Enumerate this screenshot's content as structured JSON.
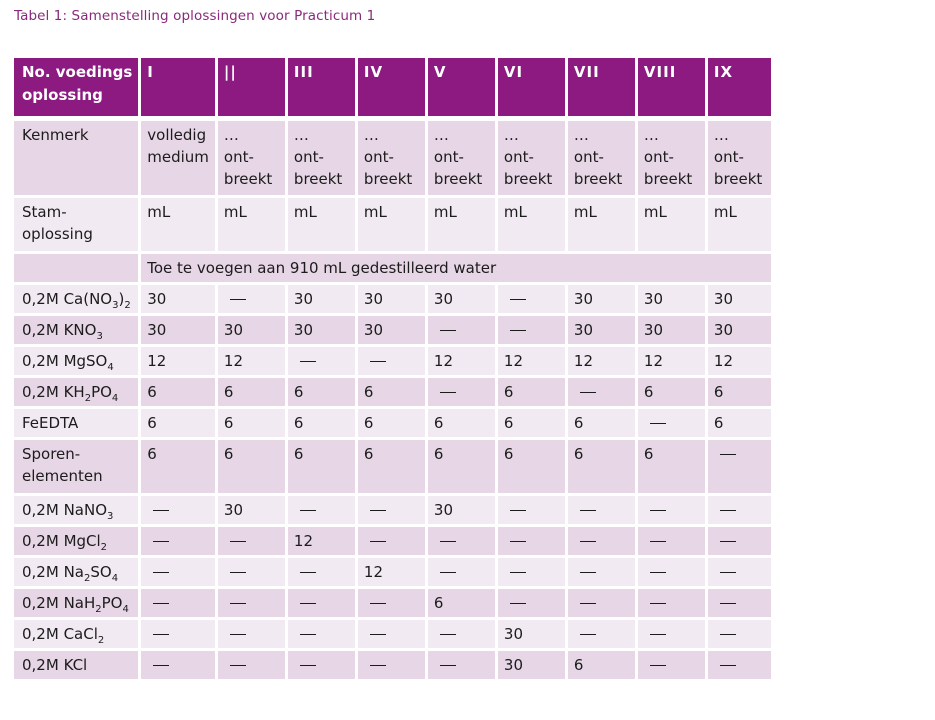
{
  "caption": "Tabel 1: Samenstelling oplossingen voor Practicum 1",
  "columns": [
    "I",
    "||",
    "III",
    "IV",
    "V",
    "VI",
    "VII",
    "VIII",
    "IX"
  ],
  "header_label": [
    "No. voedings",
    "oplossing"
  ],
  "kenmerk": {
    "label": "Kenmerk",
    "values": [
      [
        "volledig",
        "medium"
      ],
      [
        "…",
        "ont-",
        "breekt"
      ],
      [
        "…",
        "ont-",
        "breekt"
      ],
      [
        "…",
        "ont-",
        "breekt"
      ],
      [
        "…",
        "ont-",
        "breekt"
      ],
      [
        "…",
        "ont-",
        "breekt"
      ],
      [
        "…",
        "ont-",
        "breekt"
      ],
      [
        "…",
        "ont-",
        "breekt"
      ],
      [
        "…",
        "ont-",
        "breekt"
      ]
    ]
  },
  "stam": {
    "label": [
      "Stam-",
      "oplossing"
    ],
    "values": [
      "mL",
      "mL",
      "mL",
      "mL",
      "mL",
      "mL",
      "mL",
      "mL",
      "mL"
    ]
  },
  "instruction": "Toe te voegen aan 910 mL gedestilleerd water",
  "dash_glyph": "—",
  "rows": [
    {
      "label": [
        [
          "0,2M Ca(NO",
          ""
        ],
        [
          "3",
          "sub"
        ],
        [
          ")",
          ""
        ],
        [
          "2",
          "sub"
        ]
      ],
      "values": [
        "30",
        "—",
        "30",
        "30",
        "30",
        "—",
        "30",
        "30",
        "30"
      ]
    },
    {
      "label": [
        [
          "0,2M KNO",
          ""
        ],
        [
          "3",
          "sub"
        ]
      ],
      "values": [
        "30",
        "30",
        "30",
        "30",
        "—",
        "—",
        "30",
        "30",
        "30"
      ]
    },
    {
      "label": [
        [
          "0,2M MgSO",
          ""
        ],
        [
          "4",
          "sub"
        ]
      ],
      "values": [
        "12",
        "12",
        "—",
        "—",
        "12",
        "12",
        "12",
        "12",
        "12"
      ]
    },
    {
      "label": [
        [
          "0,2M KH",
          ""
        ],
        [
          "2",
          "sub"
        ],
        [
          "PO",
          ""
        ],
        [
          "4",
          "sub"
        ]
      ],
      "values": [
        "6",
        "6",
        "6",
        "6",
        "—",
        "6",
        "—",
        "6",
        "6"
      ]
    },
    {
      "label": [
        [
          "FeEDTA",
          ""
        ]
      ],
      "values": [
        "6",
        "6",
        "6",
        "6",
        "6",
        "6",
        "6",
        "—",
        "6"
      ]
    },
    {
      "label": [
        [
          "Sporen-",
          ""
        ],
        [
          "elementen",
          "br"
        ]
      ],
      "values": [
        "6",
        "6",
        "6",
        "6",
        "6",
        "6",
        "6",
        "6",
        "—"
      ]
    },
    {
      "label": [
        [
          "0,2M NaNO",
          ""
        ],
        [
          "3",
          "sub"
        ]
      ],
      "values": [
        "—",
        "30",
        "—",
        "—",
        "30",
        "—",
        "—",
        "—",
        "—"
      ]
    },
    {
      "label": [
        [
          "0,2M MgCl",
          ""
        ],
        [
          "2",
          "sub"
        ]
      ],
      "values": [
        "—",
        "—",
        "12",
        "—",
        "—",
        "—",
        "—",
        "—",
        "—"
      ]
    },
    {
      "label": [
        [
          "0,2M Na",
          ""
        ],
        [
          "2",
          "sub"
        ],
        [
          "SO",
          ""
        ],
        [
          "4",
          "sub"
        ]
      ],
      "values": [
        "—",
        "—",
        "—",
        "12",
        "—",
        "—",
        "—",
        "—",
        "—"
      ]
    },
    {
      "label": [
        [
          "0,2M NaH",
          ""
        ],
        [
          "2",
          "sub"
        ],
        [
          "PO",
          ""
        ],
        [
          "4",
          "sub"
        ]
      ],
      "values": [
        "—",
        "—",
        "—",
        "—",
        "6",
        "—",
        "—",
        "—",
        "—"
      ]
    },
    {
      "label": [
        [
          "0,2M CaCl",
          ""
        ],
        [
          "2",
          "sub"
        ]
      ],
      "values": [
        "—",
        "—",
        "—",
        "—",
        "—",
        "30",
        "—",
        "—",
        "—"
      ]
    },
    {
      "label": [
        [
          "0,2M KCl",
          ""
        ]
      ],
      "values": [
        "—",
        "—",
        "—",
        "—",
        "—",
        "30",
        "6",
        "—",
        "—"
      ]
    }
  ]
}
